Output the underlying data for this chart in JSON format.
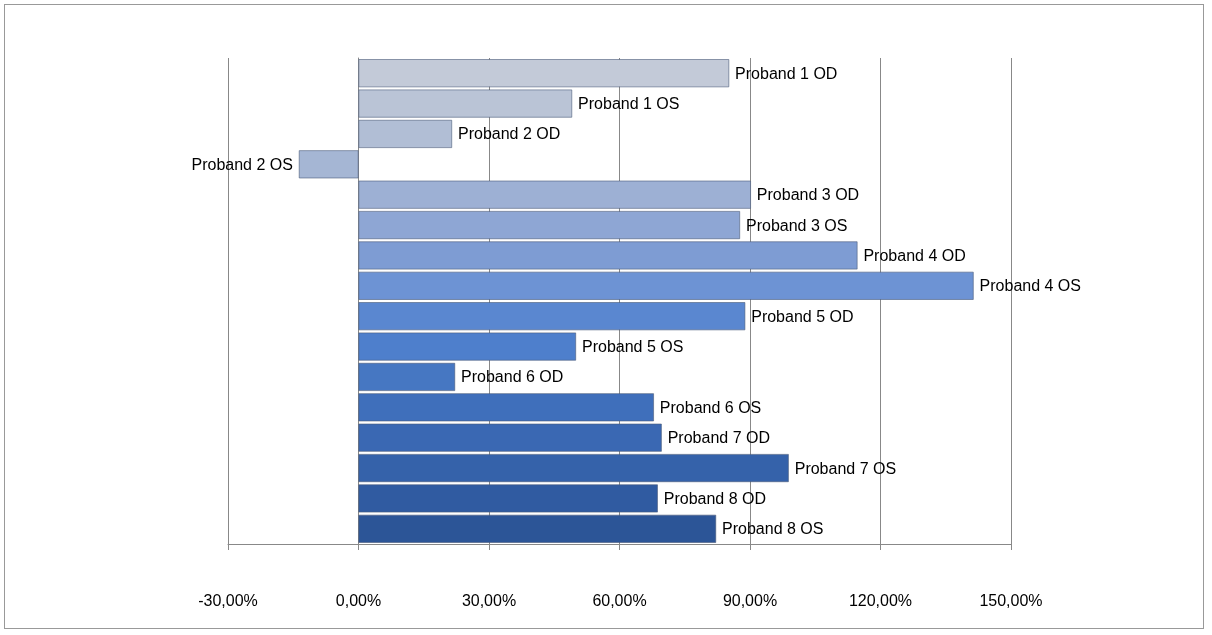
{
  "chart_data": {
    "type": "bar",
    "orientation": "horizontal",
    "categories": [
      "Proband 1 OD",
      "Proband 1 OS",
      "Proband 2 OD",
      "Proband 2 OS",
      "Proband 3 OD",
      "Proband 3 OS",
      "Proband 4 OD",
      "Proband 4 OS",
      "Proband 5 OD",
      "Proband 5 OS",
      "Proband 6 OD",
      "Proband 6 OS",
      "Proband 7 OD",
      "Proband 7 OS",
      "Proband 8 OD",
      "Proband 8 OS"
    ],
    "values": [
      85.2,
      49.1,
      21.5,
      -13.7,
      90.2,
      87.7,
      114.7,
      141.4,
      88.9,
      50.0,
      22.2,
      67.9,
      69.7,
      98.9,
      68.8,
      82.2
    ],
    "colors": [
      "#c3cad8",
      "#bac4d6",
      "#b1bed5",
      "#a5b6d4",
      "#9db0d4",
      "#8ea6d4",
      "#7e9cd3",
      "#6d93d4",
      "#5a87d0",
      "#4e7fcc",
      "#4677c2",
      "#3f6fbb",
      "#3a68b3",
      "#3562aa",
      "#305ba1",
      "#2c5597"
    ],
    "xlim": [
      -30,
      150
    ],
    "xticks": [
      {
        "value": -30,
        "label": "-30,00%"
      },
      {
        "value": 0,
        "label": "0,00%"
      },
      {
        "value": 30,
        "label": "30,00%"
      },
      {
        "value": 60,
        "label": "60,00%"
      },
      {
        "value": 90,
        "label": "90,00%"
      },
      {
        "value": 120,
        "label": "120,00%"
      },
      {
        "value": 150,
        "label": "150,00%"
      }
    ],
    "grid": "x",
    "tick_labels": "x"
  }
}
